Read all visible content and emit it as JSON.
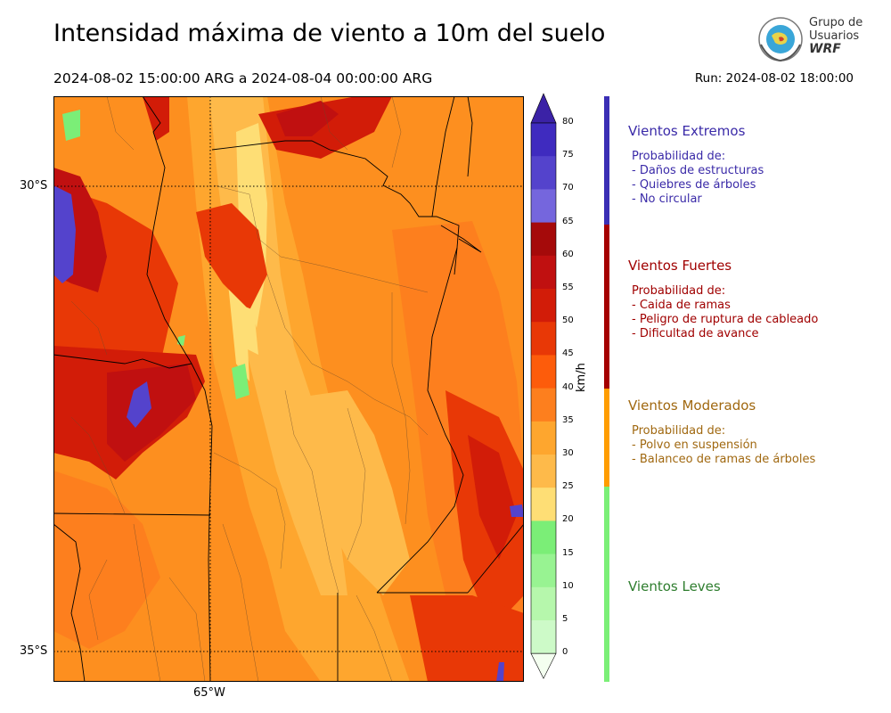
{
  "title": "Intensidad máxima de viento a 10m del suelo",
  "subtitle": "2024-08-02 15:00:00 ARG  a  2024-08-04 00:00:00 ARG",
  "run": "Run: 2024-08-02 18:00:00",
  "logo": {
    "line1": "Grupo de",
    "line2": "Usuarios",
    "line3": "WRF"
  },
  "map": {
    "lat_labels": [
      "30°S",
      "35°S"
    ],
    "lon_labels": [
      "65°W"
    ]
  },
  "colorbar": {
    "units": "km/h",
    "ticks": [
      "80",
      "75",
      "70",
      "65",
      "60",
      "55",
      "50",
      "45",
      "40",
      "35",
      "30",
      "25",
      "20",
      "15",
      "10",
      "5",
      "0"
    ],
    "colors": [
      "#3b22a6",
      "#3f2bbf",
      "#5443cc",
      "#7566dd",
      "#a50a0a",
      "#c01010",
      "#d21c08",
      "#e83806",
      "#fd5c0b",
      "#fd7f1e",
      "#fea62e",
      "#feba4a",
      "#fede75",
      "#7bee77",
      "#98f392",
      "#b6f7ac",
      "#cdfac8",
      "#e4fcdf"
    ]
  },
  "categories": [
    {
      "title": "Vientos Extremos",
      "color": "#3a2aa8",
      "bar": "#3b2fb5",
      "lines": [
        "Probabilidad de:",
        "- Daños de estructuras",
        "- Quiebres de árboles",
        "- No circular"
      ]
    },
    {
      "title": "Vientos Fuertes",
      "color": "#a00000",
      "bar": "#a50000",
      "lines": [
        "Probabilidad de:",
        "- Caida de ramas",
        "- Peligro de ruptura de cableado",
        "- Dificultad de avance"
      ]
    },
    {
      "title": "Vientos Moderados",
      "color": "#a06810",
      "bar": "#ff9d00",
      "lines": [
        "Probabilidad de:",
        "- Polvo en suspensión",
        "- Balanceo de ramas de árboles"
      ]
    },
    {
      "title": "Vientos Leves",
      "color": "#2e7d2e",
      "bar": "#7bef77",
      "lines": []
    }
  ]
}
